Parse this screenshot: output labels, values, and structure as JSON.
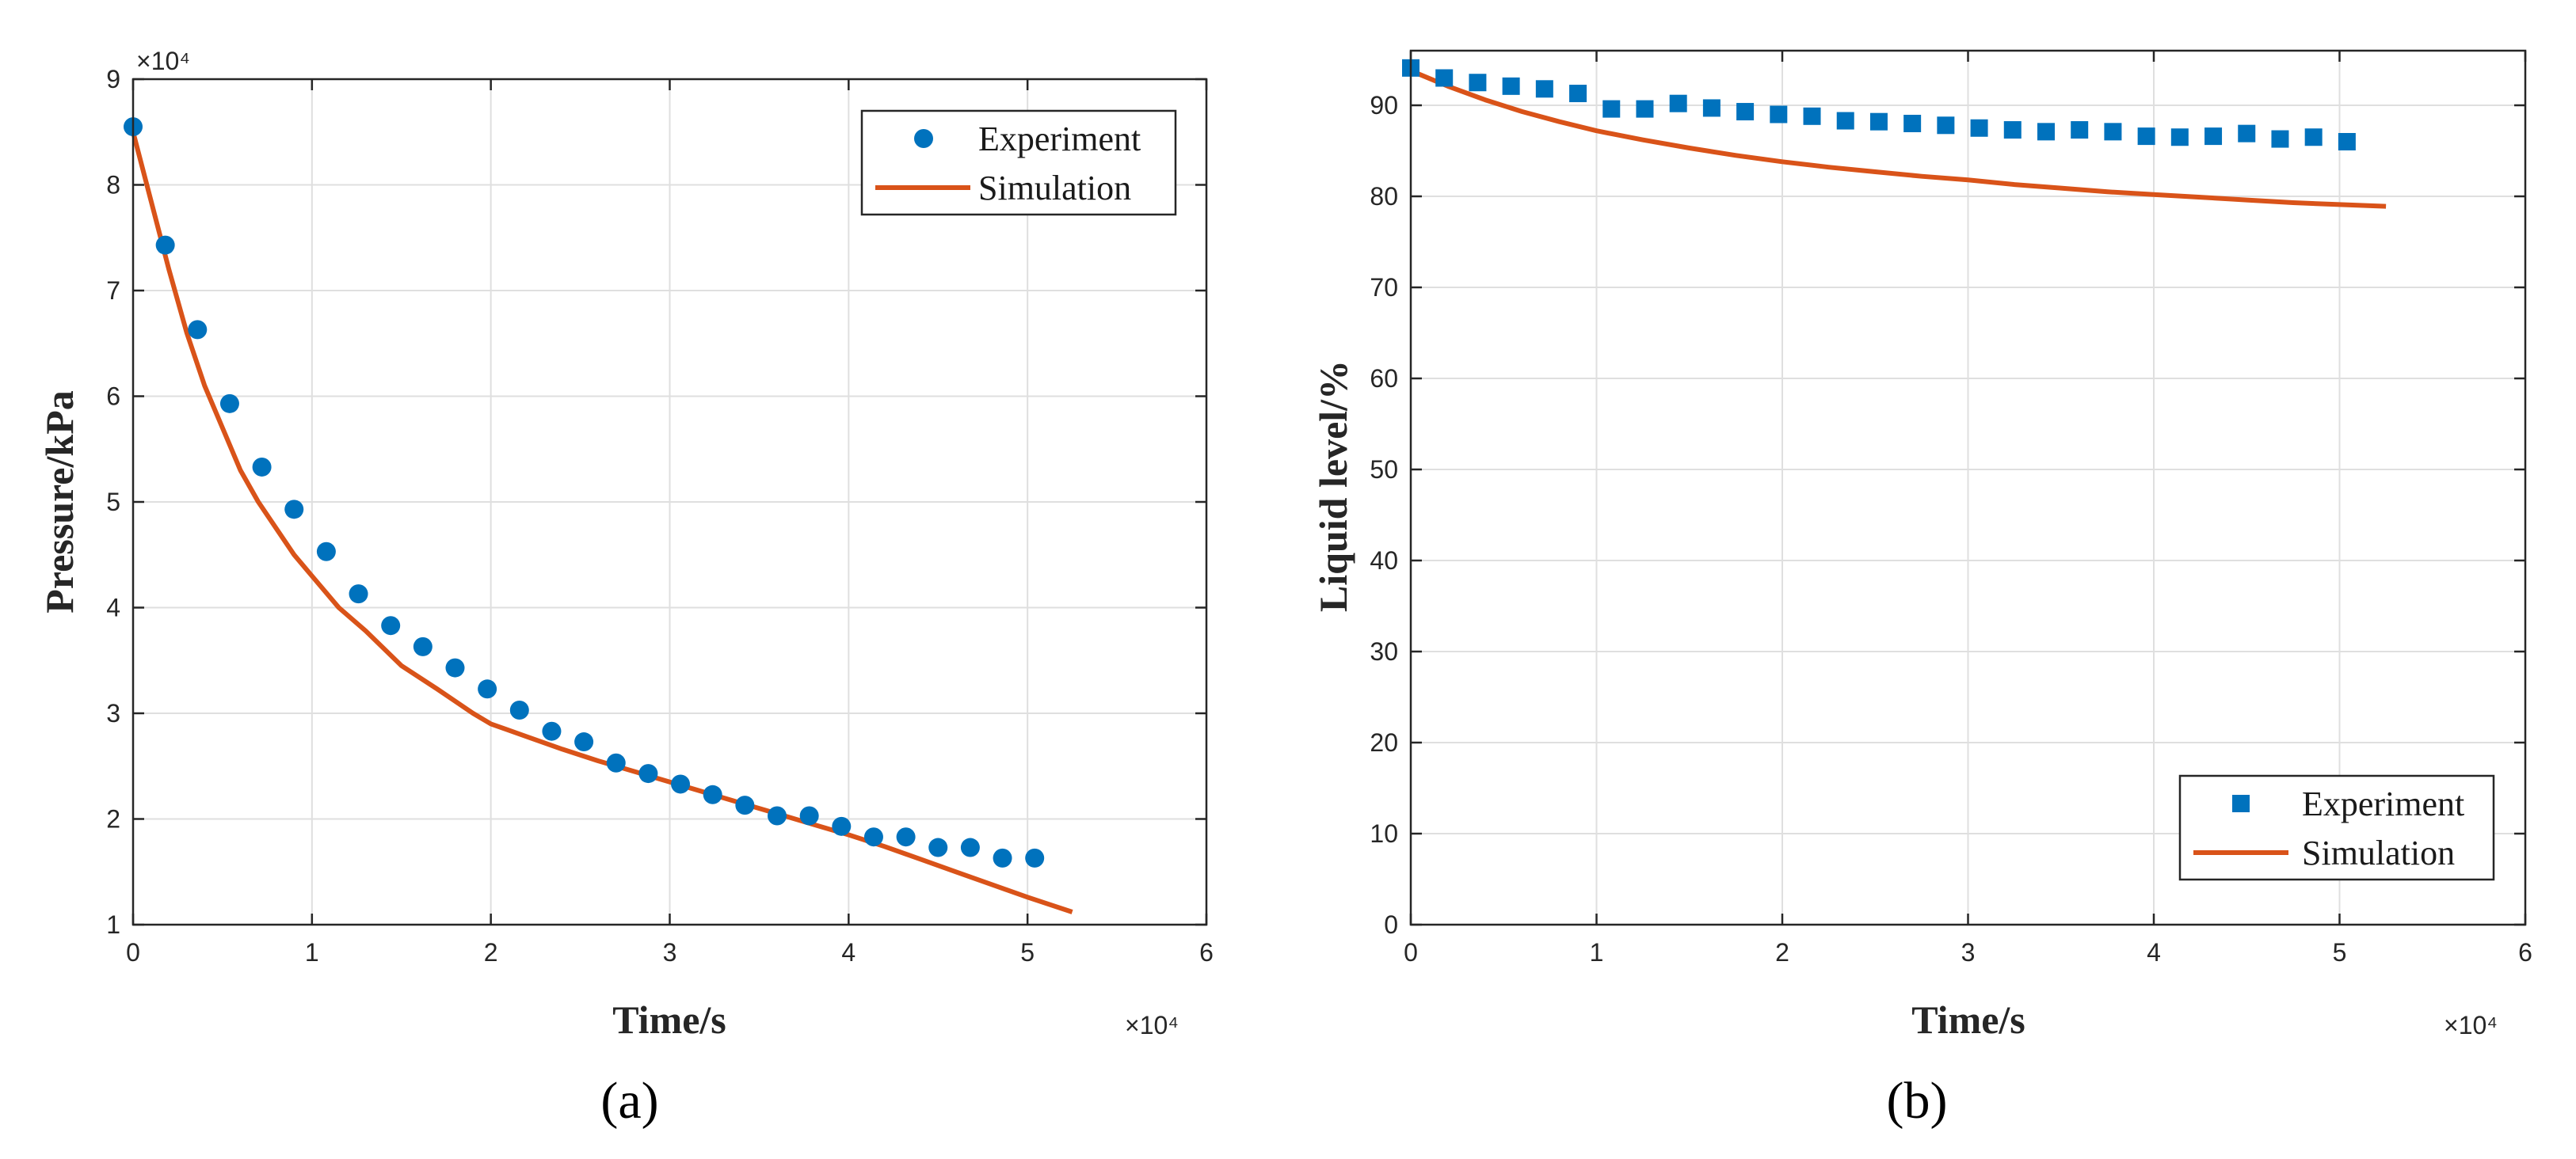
{
  "colors": {
    "experiment": "#0072bd",
    "simulation": "#d95319",
    "axis": "#262626",
    "grid": "#dfdfdf"
  },
  "chart_data": [
    {
      "id": "a",
      "type": "line",
      "panel_label": "(a)",
      "xlabel": "Time/s",
      "ylabel": "Pressure/kPa",
      "x_exponent_label": "×10⁴",
      "y_exponent_label": "×10⁴",
      "xlim": [
        0,
        6
      ],
      "ylim": [
        1,
        9
      ],
      "xticks": [
        0,
        1,
        2,
        3,
        4,
        5,
        6
      ],
      "yticks": [
        1,
        2,
        3,
        4,
        5,
        6,
        7,
        8,
        9
      ],
      "grid": true,
      "legend_position": "top-right",
      "series": [
        {
          "name": "Experiment",
          "style": "circle",
          "x": [
            0,
            0.18,
            0.36,
            0.54,
            0.72,
            0.9,
            1.08,
            1.26,
            1.44,
            1.62,
            1.8,
            1.98,
            2.16,
            2.34,
            2.52,
            2.7,
            2.88,
            3.06,
            3.24,
            3.42,
            3.6,
            3.78,
            3.96,
            4.14,
            4.32,
            4.5,
            4.68,
            4.86,
            5.04
          ],
          "y": [
            8.55,
            7.43,
            6.63,
            5.93,
            5.33,
            4.93,
            4.53,
            4.13,
            3.83,
            3.63,
            3.43,
            3.23,
            3.03,
            2.83,
            2.73,
            2.53,
            2.43,
            2.33,
            2.23,
            2.13,
            2.03,
            2.03,
            1.93,
            1.83,
            1.83,
            1.73,
            1.73,
            1.63,
            1.63
          ]
        },
        {
          "name": "Simulation",
          "style": "line",
          "x": [
            0,
            0.1,
            0.2,
            0.3,
            0.4,
            0.5,
            0.6,
            0.7,
            0.8,
            0.9,
            1.0,
            1.15,
            1.3,
            1.5,
            1.7,
            1.9,
            2.0,
            2.2,
            2.4,
            2.6,
            2.8,
            3.0,
            3.2,
            3.4,
            3.6,
            3.8,
            4.0,
            4.2,
            4.4,
            4.6,
            4.8,
            5.0,
            5.25
          ],
          "y": [
            8.5,
            7.85,
            7.2,
            6.6,
            6.1,
            5.7,
            5.3,
            5.0,
            4.75,
            4.5,
            4.3,
            4.0,
            3.78,
            3.45,
            3.23,
            3.0,
            2.9,
            2.78,
            2.66,
            2.55,
            2.45,
            2.35,
            2.25,
            2.15,
            2.05,
            1.95,
            1.85,
            1.74,
            1.62,
            1.5,
            1.38,
            1.26,
            1.12
          ]
        }
      ]
    },
    {
      "id": "b",
      "type": "line",
      "panel_label": "(b)",
      "xlabel": "Time/s",
      "ylabel": "Liquid level/%",
      "x_exponent_label": "×10⁴",
      "xlim": [
        0,
        6
      ],
      "ylim": [
        0,
        96
      ],
      "xticks": [
        0,
        1,
        2,
        3,
        4,
        5,
        6
      ],
      "yticks": [
        0,
        10,
        20,
        30,
        40,
        50,
        60,
        70,
        80,
        90
      ],
      "grid": true,
      "legend_position": "bottom-right",
      "series": [
        {
          "name": "Experiment",
          "style": "square",
          "x": [
            0,
            0.18,
            0.36,
            0.54,
            0.72,
            0.9,
            1.08,
            1.26,
            1.44,
            1.62,
            1.8,
            1.98,
            2.16,
            2.34,
            2.52,
            2.7,
            2.88,
            3.06,
            3.24,
            3.42,
            3.6,
            3.78,
            3.96,
            4.14,
            4.32,
            4.5,
            4.68,
            4.86,
            5.04
          ],
          "y": [
            94.1,
            93.0,
            92.5,
            92.1,
            91.8,
            91.3,
            89.6,
            89.6,
            90.2,
            89.7,
            89.3,
            89.0,
            88.8,
            88.3,
            88.2,
            88.0,
            87.8,
            87.5,
            87.3,
            87.1,
            87.3,
            87.1,
            86.6,
            86.5,
            86.6,
            86.9,
            86.3,
            86.5,
            86.0
          ]
        },
        {
          "name": "Simulation",
          "style": "line",
          "x": [
            0,
            0.2,
            0.4,
            0.6,
            0.8,
            1.0,
            1.25,
            1.5,
            1.75,
            2.0,
            2.25,
            2.5,
            2.75,
            3.0,
            3.25,
            3.5,
            3.75,
            4.0,
            4.25,
            4.5,
            4.75,
            5.0,
            5.25
          ],
          "y": [
            93.8,
            92.1,
            90.6,
            89.3,
            88.2,
            87.2,
            86.2,
            85.3,
            84.5,
            83.8,
            83.2,
            82.7,
            82.2,
            81.8,
            81.3,
            80.9,
            80.5,
            80.2,
            79.9,
            79.6,
            79.3,
            79.1,
            78.9
          ]
        }
      ]
    }
  ]
}
